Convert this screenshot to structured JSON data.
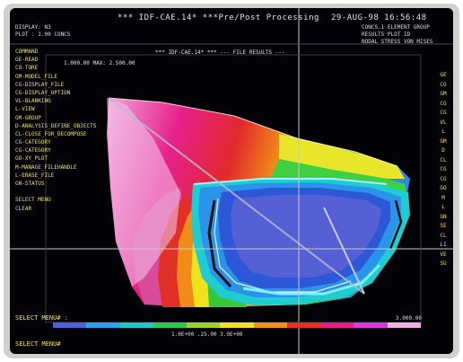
{
  "header": {
    "title": "*** IDF-CAE.14* ***Pre/Post Processing",
    "datetime": "29-AUG-98  16:56:48",
    "left_info": [
      "DISPLAY: N3",
      "PLOT  : 1.00 CONCS"
    ],
    "right_info": [
      "CONCS.1  ELEMENT GROUP",
      "RESULTS PLOT ID",
      "NODAL  STRESS  VON MISES"
    ]
  },
  "plot_title": "*** IDF-CAE.14* ***  --- FILE RESULTS ---",
  "plot_subtitle": "1.000.00  MAX: 2.500.00",
  "left_menu": {
    "title": "COMMAND",
    "items": [
      "GE-READ",
      "CO-TORE",
      "GM-MODEL_FILE",
      "CG-DISPLAY_FILE",
      "CG-DISPLAY_OPTION",
      "VL-BLANKING",
      "L-VIEW",
      "GM-GROUP",
      "D-ANALYSIS_DEFINE_OBJECTS",
      "CL-CLOSE_FOR_DECOMPOSE",
      "CG-CATEGORY",
      "CG-CATEGORY",
      "GO-XY_PLOT",
      "M-MANAGE_FILEHANDLE",
      "L-ERASE_FILE",
      "GN-STATUS",
      "",
      "SELECT MENU",
      "CLEAR"
    ]
  },
  "right_menu": {
    "items": [
      "GE",
      "CO",
      "GM",
      "CG",
      "CG",
      "VL",
      "L",
      "GM",
      "D",
      "CL",
      "CG",
      "CG",
      "GO",
      "M",
      "L",
      "GN",
      "SE",
      "CL",
      "LI",
      "VE",
      "SU"
    ]
  },
  "footer": {
    "prompt1": "SELECT MENU# :",
    "prompt2": "SELECT MENU#",
    "scale_label": "3.000.00",
    "colorbar_caption": "1.0E+00  .25.00  3.0E+00"
  },
  "colors": {
    "background": "#030307",
    "menu_text": "#e8e063",
    "header_text": "#dfe3ea",
    "crosshair": "#c9c9c9",
    "colorbar": [
      "#5060d8",
      "#2ea0f0",
      "#20c8c8",
      "#2ec84a",
      "#9ed028",
      "#f0e020",
      "#f09018",
      "#e83020",
      "#e02088",
      "#d83ad8",
      "#f0b0e0"
    ]
  }
}
